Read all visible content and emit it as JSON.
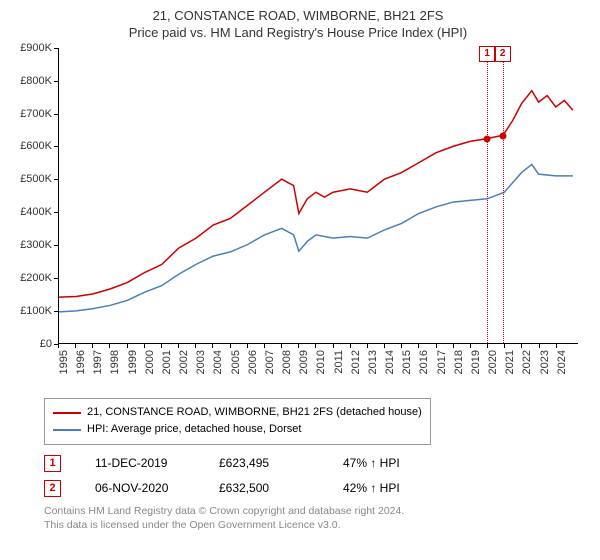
{
  "title_line1": "21, CONSTANCE ROAD, WIMBORNE, BH21 2FS",
  "title_line2": "Price paid vs. HM Land Registry's House Price Index (HPI)",
  "chart": {
    "type": "line",
    "background_color": "#ffffff",
    "axis_color": "#000000",
    "tick_fontsize": 11,
    "xlim": [
      1995,
      2025.3
    ],
    "ylim": [
      0,
      900
    ],
    "ytick_step": 100,
    "yticks": [
      {
        "v": 0,
        "label": "£0"
      },
      {
        "v": 100,
        "label": "£100K"
      },
      {
        "v": 200,
        "label": "£200K"
      },
      {
        "v": 300,
        "label": "£300K"
      },
      {
        "v": 400,
        "label": "£400K"
      },
      {
        "v": 500,
        "label": "£500K"
      },
      {
        "v": 600,
        "label": "£600K"
      },
      {
        "v": 700,
        "label": "£700K"
      },
      {
        "v": 800,
        "label": "£800K"
      },
      {
        "v": 900,
        "label": "£900K"
      }
    ],
    "xticks": [
      1995,
      1996,
      1997,
      1998,
      1999,
      2000,
      2001,
      2002,
      2003,
      2004,
      2005,
      2006,
      2007,
      2008,
      2009,
      2010,
      2011,
      2012,
      2013,
      2014,
      2015,
      2016,
      2017,
      2018,
      2019,
      2020,
      2021,
      2022,
      2023,
      2024
    ],
    "series": [
      {
        "name": "property",
        "color": "#cc0000",
        "line_width": 1.5,
        "values": [
          [
            1995,
            140
          ],
          [
            1996,
            142
          ],
          [
            1997,
            150
          ],
          [
            1998,
            165
          ],
          [
            1999,
            185
          ],
          [
            2000,
            215
          ],
          [
            2001,
            240
          ],
          [
            2002,
            290
          ],
          [
            2003,
            320
          ],
          [
            2004,
            360
          ],
          [
            2005,
            380
          ],
          [
            2006,
            420
          ],
          [
            2007,
            460
          ],
          [
            2008,
            500
          ],
          [
            2008.7,
            480
          ],
          [
            2009,
            395
          ],
          [
            2009.5,
            440
          ],
          [
            2010,
            460
          ],
          [
            2010.5,
            445
          ],
          [
            2011,
            460
          ],
          [
            2012,
            470
          ],
          [
            2013,
            460
          ],
          [
            2013.5,
            480
          ],
          [
            2014,
            500
          ],
          [
            2015,
            520
          ],
          [
            2016,
            550
          ],
          [
            2017,
            580
          ],
          [
            2018,
            600
          ],
          [
            2019,
            615
          ],
          [
            2019.95,
            623
          ],
          [
            2020.85,
            633
          ],
          [
            2021,
            640
          ],
          [
            2021.5,
            680
          ],
          [
            2022,
            730
          ],
          [
            2022.6,
            770
          ],
          [
            2023,
            735
          ],
          [
            2023.5,
            755
          ],
          [
            2024,
            720
          ],
          [
            2024.5,
            740
          ],
          [
            2025,
            710
          ]
        ]
      },
      {
        "name": "hpi",
        "color": "#4a7ebb",
        "line_width": 1.5,
        "values": [
          [
            1995,
            95
          ],
          [
            1996,
            98
          ],
          [
            1997,
            105
          ],
          [
            1998,
            115
          ],
          [
            1999,
            130
          ],
          [
            2000,
            155
          ],
          [
            2001,
            175
          ],
          [
            2002,
            210
          ],
          [
            2003,
            240
          ],
          [
            2004,
            265
          ],
          [
            2005,
            278
          ],
          [
            2006,
            300
          ],
          [
            2007,
            330
          ],
          [
            2008,
            350
          ],
          [
            2008.7,
            330
          ],
          [
            2009,
            280
          ],
          [
            2009.5,
            310
          ],
          [
            2010,
            330
          ],
          [
            2011,
            320
          ],
          [
            2012,
            325
          ],
          [
            2013,
            320
          ],
          [
            2014,
            345
          ],
          [
            2015,
            365
          ],
          [
            2016,
            395
          ],
          [
            2017,
            415
          ],
          [
            2018,
            430
          ],
          [
            2019,
            435
          ],
          [
            2020,
            440
          ],
          [
            2021,
            460
          ],
          [
            2022,
            520
          ],
          [
            2022.6,
            545
          ],
          [
            2023,
            515
          ],
          [
            2024,
            510
          ],
          [
            2025,
            510
          ]
        ]
      }
    ],
    "markers": [
      {
        "n": 1,
        "year": 2019.95,
        "color": "#cc0000"
      },
      {
        "n": 2,
        "year": 2020.85,
        "color": "#cc0000"
      }
    ],
    "sale_dots": [
      {
        "year": 2019.95,
        "value": 623,
        "color": "#cc0000"
      },
      {
        "year": 2020.85,
        "value": 633,
        "color": "#cc0000"
      }
    ]
  },
  "legend": {
    "border_color": "#999999",
    "fontsize": 11,
    "items": [
      {
        "color": "#cc0000",
        "label": "21, CONSTANCE ROAD, WIMBORNE, BH21 2FS (detached house)"
      },
      {
        "color": "#4a7ebb",
        "label": "HPI: Average price, detached house, Dorset"
      }
    ]
  },
  "sales": [
    {
      "n": "1",
      "date": "11-DEC-2019",
      "price": "£623,495",
      "pct": "47% ↑ HPI",
      "color": "#cc0000"
    },
    {
      "n": "2",
      "date": "06-NOV-2020",
      "price": "£632,500",
      "pct": "42% ↑ HPI",
      "color": "#cc0000"
    }
  ],
  "footer_line1": "Contains HM Land Registry data © Crown copyright and database right 2024.",
  "footer_line2": "This data is licensed under the Open Government Licence v3.0."
}
